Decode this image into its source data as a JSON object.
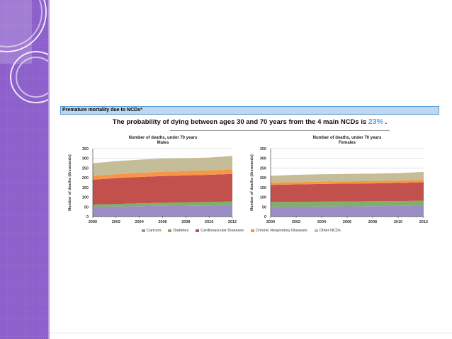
{
  "header": {
    "title": "Premature mortality due to NCDs*"
  },
  "headline": {
    "text": "The probability of dying between ages 30 and 70 years from the 4 main NCDs is",
    "value": "23%",
    "suffix": "."
  },
  "colors": {
    "band": "#8a5cc9",
    "Cancers": "#9b8ec4",
    "Diabetes": "#7fb069",
    "Cardiovascular Diseases": "#c2504d",
    "Chronic Respiratory Diseases": "#f79646",
    "Other NCDs": "#c4bd97"
  },
  "legend": [
    "Cancers",
    "Diabetes",
    "Cardiovascular Diseases",
    "Chronic Respiratory Diseases",
    "Other NCDs"
  ],
  "chart_data": [
    {
      "type": "area",
      "title": "Number of deaths, under 70 years",
      "subtitle": "Males",
      "ylabel": "Number of deaths (thousands)",
      "ylim": [
        0,
        350
      ],
      "yticks": [
        0,
        50,
        100,
        150,
        200,
        250,
        300,
        350
      ],
      "x": [
        2000,
        2002,
        2004,
        2006,
        2008,
        2010,
        2012
      ],
      "stacked": true,
      "grid": true,
      "series": [
        {
          "name": "Cancers",
          "values": [
            50,
            52,
            54,
            56,
            57,
            58,
            60
          ]
        },
        {
          "name": "Diabetes",
          "values": [
            12,
            13,
            14,
            15,
            16,
            17,
            18
          ]
        },
        {
          "name": "Cardiovascular Diseases",
          "values": [
            128,
            133,
            136,
            138,
            139,
            140,
            142
          ]
        },
        {
          "name": "Chronic Respiratory Diseases",
          "values": [
            20,
            20,
            21,
            22,
            22,
            23,
            24
          ]
        },
        {
          "name": "Other NCDs",
          "values": [
            65,
            67,
            68,
            68,
            67,
            66,
            68
          ]
        }
      ]
    },
    {
      "type": "area",
      "title": "Number of deaths, under 70 years",
      "subtitle": "Females",
      "ylabel": "Number of deaths (thousands)",
      "ylim": [
        0,
        350
      ],
      "yticks": [
        0,
        50,
        100,
        150,
        200,
        250,
        300,
        350
      ],
      "x": [
        2000,
        2002,
        2004,
        2006,
        2008,
        2010,
        2012
      ],
      "stacked": true,
      "grid": true,
      "series": [
        {
          "name": "Cancers",
          "values": [
            50,
            51,
            52,
            53,
            54,
            55,
            57
          ]
        },
        {
          "name": "Diabetes",
          "values": [
            25,
            25,
            25,
            25,
            25,
            25,
            25
          ]
        },
        {
          "name": "Cardiovascular Diseases",
          "values": [
            88,
            90,
            91,
            92,
            92,
            93,
            95
          ]
        },
        {
          "name": "Chronic Respiratory Diseases",
          "values": [
            12,
            12,
            12,
            12,
            12,
            12,
            13
          ]
        },
        {
          "name": "Other NCDs",
          "values": [
            35,
            37,
            38,
            38,
            38,
            39,
            40
          ]
        }
      ]
    }
  ]
}
